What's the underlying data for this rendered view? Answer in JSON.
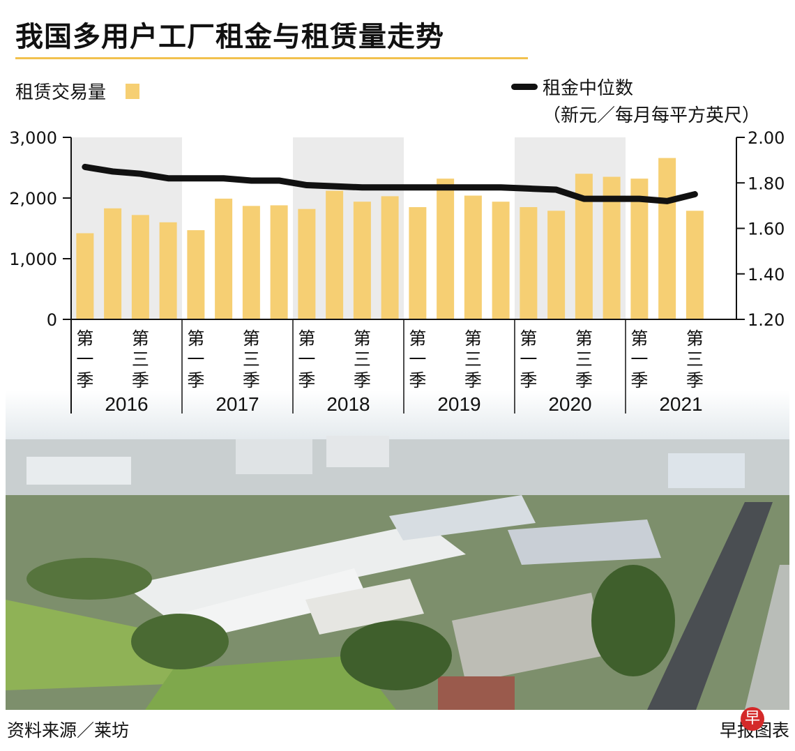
{
  "title": "我国多用户工厂租金与租赁量走势",
  "legend": {
    "bars_label": "租赁交易量",
    "line_label": "租金中位数",
    "line_unit": "（新元／每月每平方英尺）"
  },
  "source": "资料来源／莱坊",
  "credit": "早报图表",
  "credit_logo": "早",
  "colors": {
    "bar": "#f6cf73",
    "line": "#111111",
    "shade": "#ebebeb",
    "accent": "#f2c14e"
  },
  "chart_data": {
    "type": "bar+line",
    "title": "我国多用户工厂租金与租赁量走势",
    "y_left": {
      "label": "租赁交易量",
      "range": [
        0,
        3000
      ],
      "ticks": [
        "0",
        "1,000",
        "2,000",
        "3,000"
      ]
    },
    "y_right": {
      "label": "租金中位数（新元／每月每平方英尺）",
      "range": [
        1.2,
        2.0
      ],
      "ticks": [
        "1.20",
        "1.40",
        "1.60",
        "1.80",
        "2.00"
      ]
    },
    "years": [
      "2016",
      "2017",
      "2018",
      "2019",
      "2020",
      "2021"
    ],
    "quarter_labels": [
      "第\n一\n季",
      "第\n三\n季"
    ],
    "categories": [
      "2016 Q1",
      "2016 Q2",
      "2016 Q3",
      "2016 Q4",
      "2017 Q1",
      "2017 Q2",
      "2017 Q3",
      "2017 Q4",
      "2018 Q1",
      "2018 Q2",
      "2018 Q3",
      "2018 Q4",
      "2019 Q1",
      "2019 Q2",
      "2019 Q3",
      "2019 Q4",
      "2020 Q1",
      "2020 Q2",
      "2020 Q3",
      "2020 Q4",
      "2021 Q1",
      "2021 Q2",
      "2021 Q3"
    ],
    "series": [
      {
        "name": "租赁交易量",
        "type": "bar",
        "axis": "left",
        "values": [
          1420,
          1830,
          1720,
          1600,
          1470,
          1990,
          1870,
          1880,
          1820,
          2120,
          1940,
          2030,
          1850,
          2320,
          2040,
          1940,
          1850,
          1790,
          2400,
          2350,
          2320,
          2660,
          1790
        ]
      },
      {
        "name": "租金中位数",
        "type": "line",
        "axis": "right",
        "values": [
          1.87,
          1.85,
          1.84,
          1.82,
          1.82,
          1.82,
          1.81,
          1.81,
          1.79,
          1.785,
          1.78,
          1.78,
          1.78,
          1.78,
          1.78,
          1.78,
          1.775,
          1.77,
          1.73,
          1.73,
          1.73,
          1.72,
          1.75
        ]
      }
    ]
  }
}
